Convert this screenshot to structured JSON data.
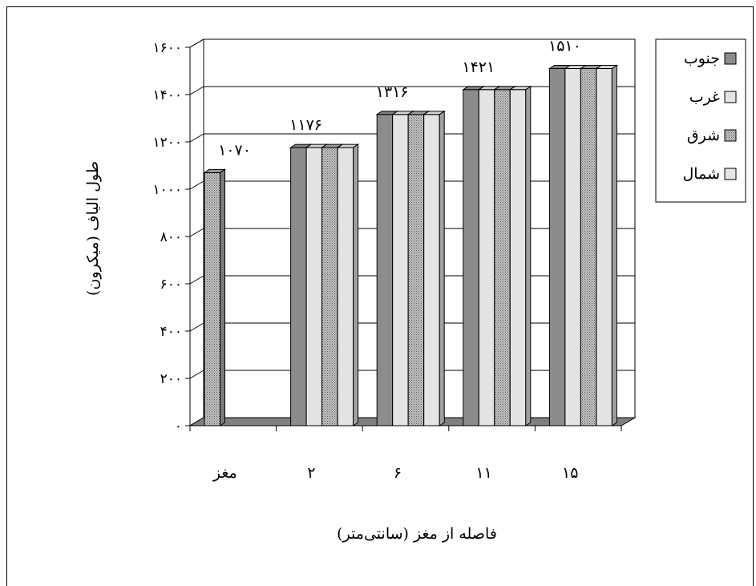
{
  "chart_data": {
    "type": "bar",
    "ylabel": "طول الیاف (میکرون)",
    "xlabel": "فاصله از مغز (سانتی‌متر)",
    "ylim": [
      0,
      1600
    ],
    "y_ticks": [
      "۰",
      "۲۰۰",
      "۴۰۰",
      "۶۰۰",
      "۸۰۰",
      "۱۰۰۰",
      "۱۲۰۰",
      "۱۴۰۰",
      "۱۶۰۰"
    ],
    "y_tick_values": [
      0,
      200,
      400,
      600,
      800,
      1000,
      1200,
      1400,
      1600
    ],
    "categories": [
      "مغز",
      "۲",
      "۶",
      "۱۱",
      "۱۵"
    ],
    "category_totals": [
      "۱۰۷۰",
      "۱۱۷۶",
      "۱۳۱۶",
      "۱۴۲۱",
      "۱۵۱۰"
    ],
    "series": [
      {
        "name": "جنوب",
        "color": "#8c8c8c",
        "pattern": "solid",
        "values": [
          null,
          1176,
          1316,
          1421,
          1510
        ]
      },
      {
        "name": "غرب",
        "color": "#e4e4e4",
        "pattern": "solid",
        "values": [
          null,
          1176,
          1316,
          1421,
          1510
        ]
      },
      {
        "name": "شرق",
        "color": "#a8a8a8",
        "pattern": "dots",
        "values": [
          1070,
          1176,
          1316,
          1421,
          1510
        ]
      },
      {
        "name": "شمال",
        "color": "#e4e4e4",
        "pattern": "solid",
        "values": [
          null,
          1176,
          1316,
          1421,
          1510
        ]
      }
    ],
    "grid": true,
    "legend_position": "top-right"
  }
}
